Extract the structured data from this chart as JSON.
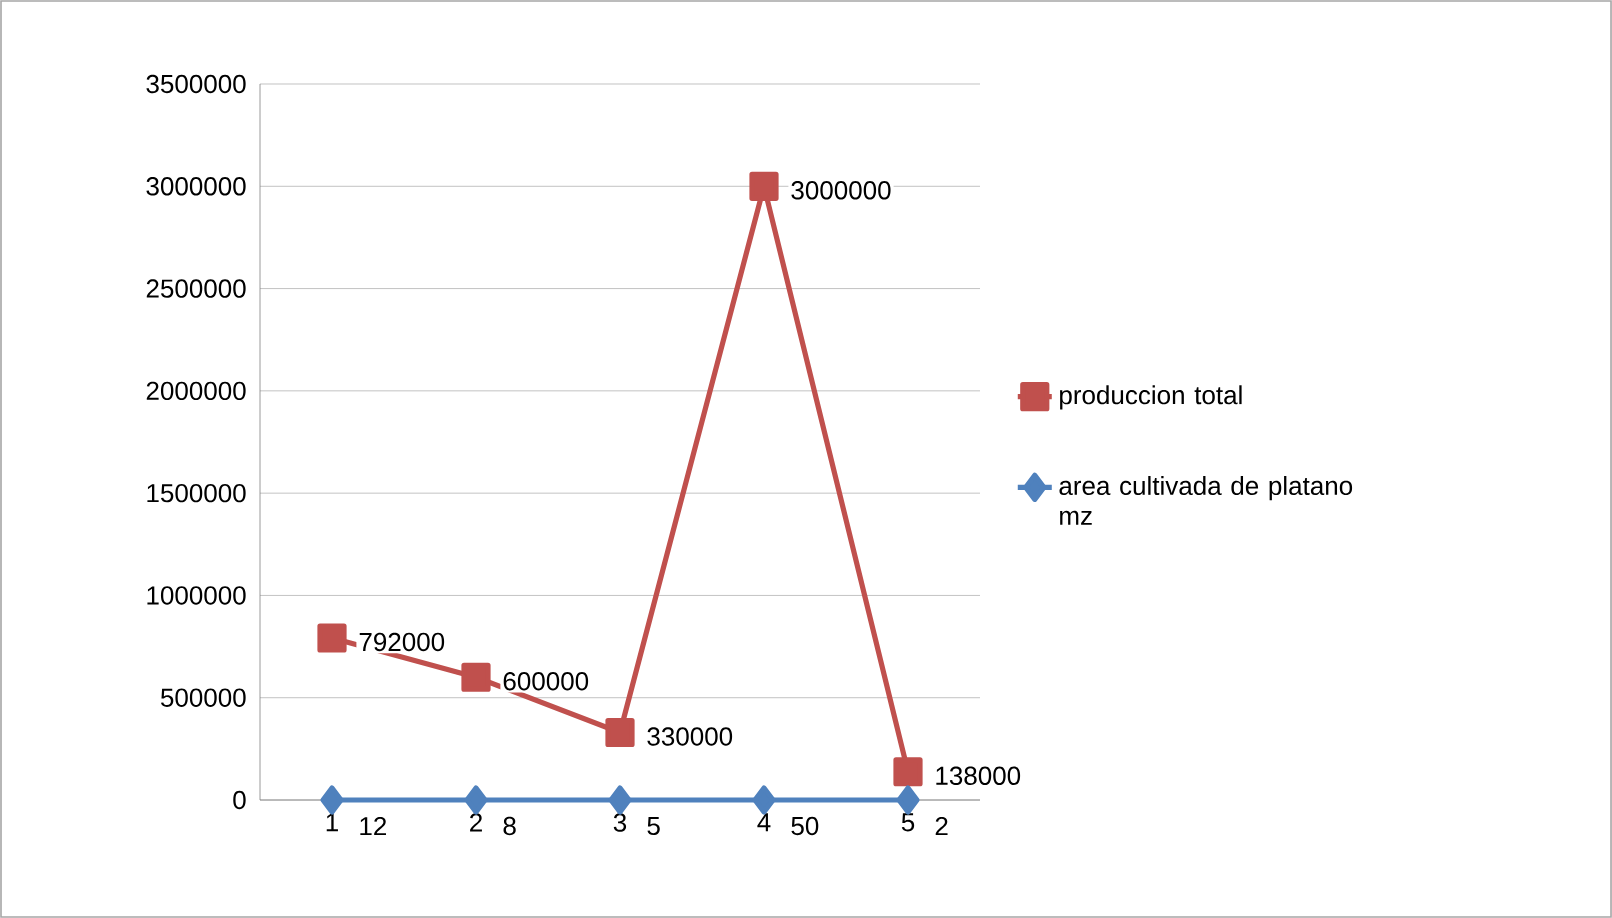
{
  "chart_data": {
    "type": "line",
    "categories": [
      "1",
      "2",
      "3",
      "4",
      "5"
    ],
    "series": [
      {
        "name": "produccion total",
        "color": "#c0504d",
        "marker": "square",
        "values": [
          792000,
          600000,
          330000,
          3000000,
          138000
        ]
      },
      {
        "name": "area cultivada de platano mz",
        "color": "#4f81bd",
        "marker": "diamond",
        "values": [
          12,
          8,
          5,
          50,
          2
        ]
      }
    ],
    "ylim": [
      0,
      3500000
    ],
    "yticks": [
      0,
      500000,
      1000000,
      1500000,
      2000000,
      2500000,
      3000000,
      3500000
    ],
    "grid": "y",
    "legend": "right",
    "data_labels": true,
    "line_style": "solid"
  }
}
